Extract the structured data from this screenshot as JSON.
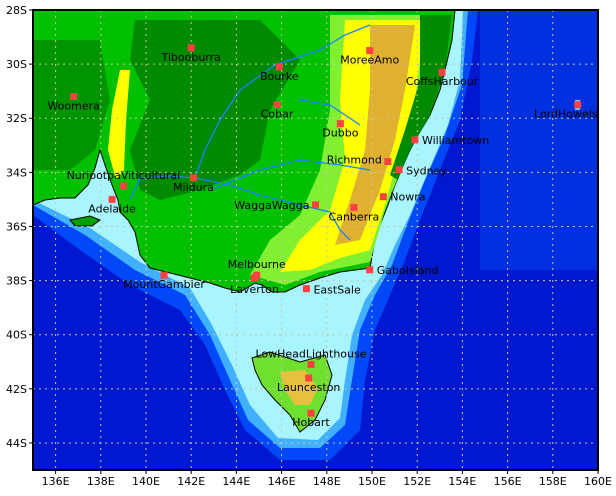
{
  "map": {
    "extent": {
      "lon": [
        135,
        160
      ],
      "lat": [
        -45,
        -28
      ]
    },
    "x_ticks": [
      "136E",
      "138E",
      "140E",
      "142E",
      "144E",
      "146E",
      "148E",
      "150E",
      "152E",
      "154E",
      "156E",
      "158E",
      "160E"
    ],
    "x_tick_values": [
      136,
      138,
      140,
      142,
      144,
      146,
      148,
      150,
      152,
      154,
      156,
      158,
      160
    ],
    "y_ticks": [
      "28S",
      "30S",
      "32S",
      "34S",
      "36S",
      "38S",
      "40S",
      "42S",
      "44S"
    ],
    "y_tick_values": [
      -28,
      -30,
      -32,
      -34,
      -36,
      -38,
      -40,
      -42,
      -44
    ],
    "grid": true,
    "colors": {
      "deep_ocean": "#0010c8",
      "ocean": "#0040f0",
      "shelf_mid": "#40a0ff",
      "shelf": "#a0f0ff",
      "lowland": "#008c00",
      "plain": "#00c800",
      "upland": "#80f030",
      "high": "#ffff00",
      "peak": "#e0b030",
      "marker": "#ff4040",
      "river": "#2080ff"
    },
    "stations": [
      {
        "name": "Tibooburra",
        "lon": 142.0,
        "lat": -29.4
      },
      {
        "name": "Woomera",
        "lon": 136.8,
        "lat": -31.2
      },
      {
        "name": "Bourke",
        "lon": 145.9,
        "lat": -30.1
      },
      {
        "name": "Cobar",
        "lon": 145.8,
        "lat": -31.5
      },
      {
        "name": "MoreeAmo",
        "lon": 149.9,
        "lat": -29.5
      },
      {
        "name": "CoffsHarbour",
        "lon": 153.1,
        "lat": -30.3
      },
      {
        "name": "Dubbo",
        "lon": 148.6,
        "lat": -32.2
      },
      {
        "name": "Williamtown",
        "lon": 151.9,
        "lat": -32.8
      },
      {
        "name": "LordHowelsland",
        "lon": 159.1,
        "lat": -31.5
      },
      {
        "name": "Richmond",
        "lon": 150.7,
        "lat": -33.6
      },
      {
        "name": "Sydney",
        "lon": 151.2,
        "lat": -33.9
      },
      {
        "name": "Mildura",
        "lon": 142.1,
        "lat": -34.2
      },
      {
        "name": "NuriootpaViticultural",
        "lon": 139.0,
        "lat": -34.5
      },
      {
        "name": "Adelaide",
        "lon": 138.5,
        "lat": -35.0
      },
      {
        "name": "WaggaWagga",
        "lon": 147.5,
        "lat": -35.2
      },
      {
        "name": "Nowra",
        "lon": 150.5,
        "lat": -34.9
      },
      {
        "name": "Canberra",
        "lon": 149.2,
        "lat": -35.3
      },
      {
        "name": "MountGambier",
        "lon": 140.8,
        "lat": -37.8
      },
      {
        "name": "Melbourne",
        "lon": 144.9,
        "lat": -37.8
      },
      {
        "name": "Laverton",
        "lon": 144.8,
        "lat": -37.9
      },
      {
        "name": "EastSale",
        "lon": 147.1,
        "lat": -38.3
      },
      {
        "name": "GaboIsland",
        "lon": 149.9,
        "lat": -37.6
      },
      {
        "name": "LowHeadLighthouse",
        "lon": 147.3,
        "lat": -41.1
      },
      {
        "name": "Launceston",
        "lon": 147.2,
        "lat": -41.6
      },
      {
        "name": "Hobart",
        "lon": 147.3,
        "lat": -42.9
      }
    ]
  }
}
